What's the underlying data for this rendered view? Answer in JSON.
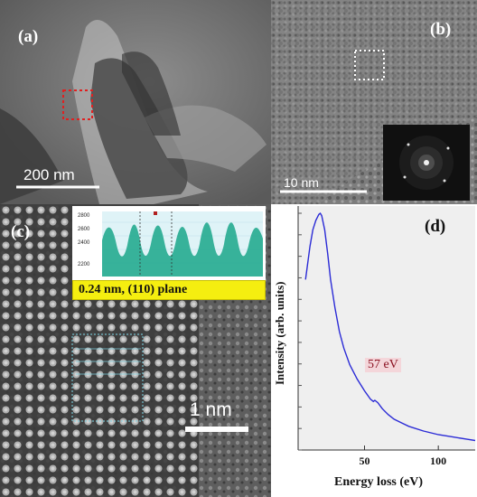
{
  "panels": {
    "a": {
      "label": "(a)",
      "scale_text": "200  nm"
    },
    "b": {
      "label": "(b)",
      "scale_text": "10  nm"
    },
    "c": {
      "label": "(c)",
      "profile_ticks": [
        "2800",
        "2600",
        "2400",
        "2200"
      ],
      "plane_text": "0.24 nm, (110) plane",
      "scale_text": "1  nm"
    },
    "d": {
      "label": "(d)",
      "ylabel": "Intensity (arb. units)",
      "xlabel": "Energy loss (eV)",
      "peak_annotation": "57 eV"
    }
  },
  "colors": {
    "dashed_box_a": "#e02020",
    "dashed_box_b": "#ffffff",
    "profile_fill": "#1aa68a",
    "plane_bg": "#f5ee10",
    "spectrum_line": "#2b2bd6",
    "peak_label_text": "#8a1020"
  },
  "chart_data": {
    "type": "line",
    "xlabel": "Energy loss (eV)",
    "ylabel": "Intensity (arb. units)",
    "xlim": [
      5,
      125
    ],
    "xticks": [
      50,
      100
    ],
    "ylim": [
      0,
      1
    ],
    "grid": false,
    "annotations": [
      {
        "x": 57,
        "text": "57 eV"
      }
    ],
    "series": [
      {
        "x": [
          10,
          13,
          15,
          17,
          19,
          20,
          21,
          23,
          25,
          27,
          30,
          33,
          36,
          40,
          45,
          50,
          54,
          56,
          57,
          59,
          62,
          66,
          70,
          75,
          80,
          90,
          100,
          110,
          120,
          125
        ],
        "values": [
          0.72,
          0.86,
          0.93,
          0.97,
          0.995,
          1.0,
          0.99,
          0.93,
          0.83,
          0.72,
          0.6,
          0.5,
          0.43,
          0.36,
          0.3,
          0.25,
          0.215,
          0.205,
          0.21,
          0.2,
          0.175,
          0.15,
          0.13,
          0.115,
          0.1,
          0.08,
          0.065,
          0.055,
          0.045,
          0.04
        ]
      }
    ]
  }
}
